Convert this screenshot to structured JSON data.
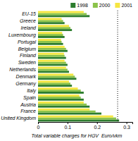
{
  "chart_data": {
    "type": "bar",
    "orientation": "horizontal",
    "categories": [
      "EU-15",
      "Greece",
      "Ireland",
      "Luxembourg",
      "Portugal",
      "Belgium",
      "Finland",
      "Sweden",
      "Netherlands",
      "Denmark",
      "Germany",
      "Italy",
      "Spain",
      "Austria",
      "France",
      "United Kingdom"
    ],
    "series": [
      {
        "name": "1998",
        "color": "#2d7d2e",
        "values": [
          0.175,
          0.09,
          0.115,
          0.09,
          0.085,
          0.1,
          0.095,
          0.1,
          0.105,
          0.13,
          0.115,
          0.155,
          0.155,
          0.175,
          0.215,
          0.275
        ]
      },
      {
        "name": "2000",
        "color": "#8bc34a",
        "values": [
          0.165,
          0.085,
          0.11,
          0.085,
          0.08,
          0.095,
          0.09,
          0.095,
          0.1,
          0.125,
          0.11,
          0.145,
          0.145,
          0.165,
          0.195,
          0.265
        ]
      },
      {
        "name": "2001",
        "color": "#f5e642",
        "values": [
          0.155,
          0.08,
          0.105,
          0.082,
          0.078,
          0.09,
          0.088,
          0.09,
          0.095,
          0.12,
          0.105,
          0.135,
          0.14,
          0.155,
          0.175,
          0.255
        ]
      }
    ],
    "xlabel": "Total variable charges for HGV  Euro/vkm",
    "xlim": [
      0,
      0.32
    ],
    "xticks": [
      0,
      0.1,
      0.2,
      0.3
    ],
    "reference_line": 0.27,
    "legend": "upper right"
  }
}
